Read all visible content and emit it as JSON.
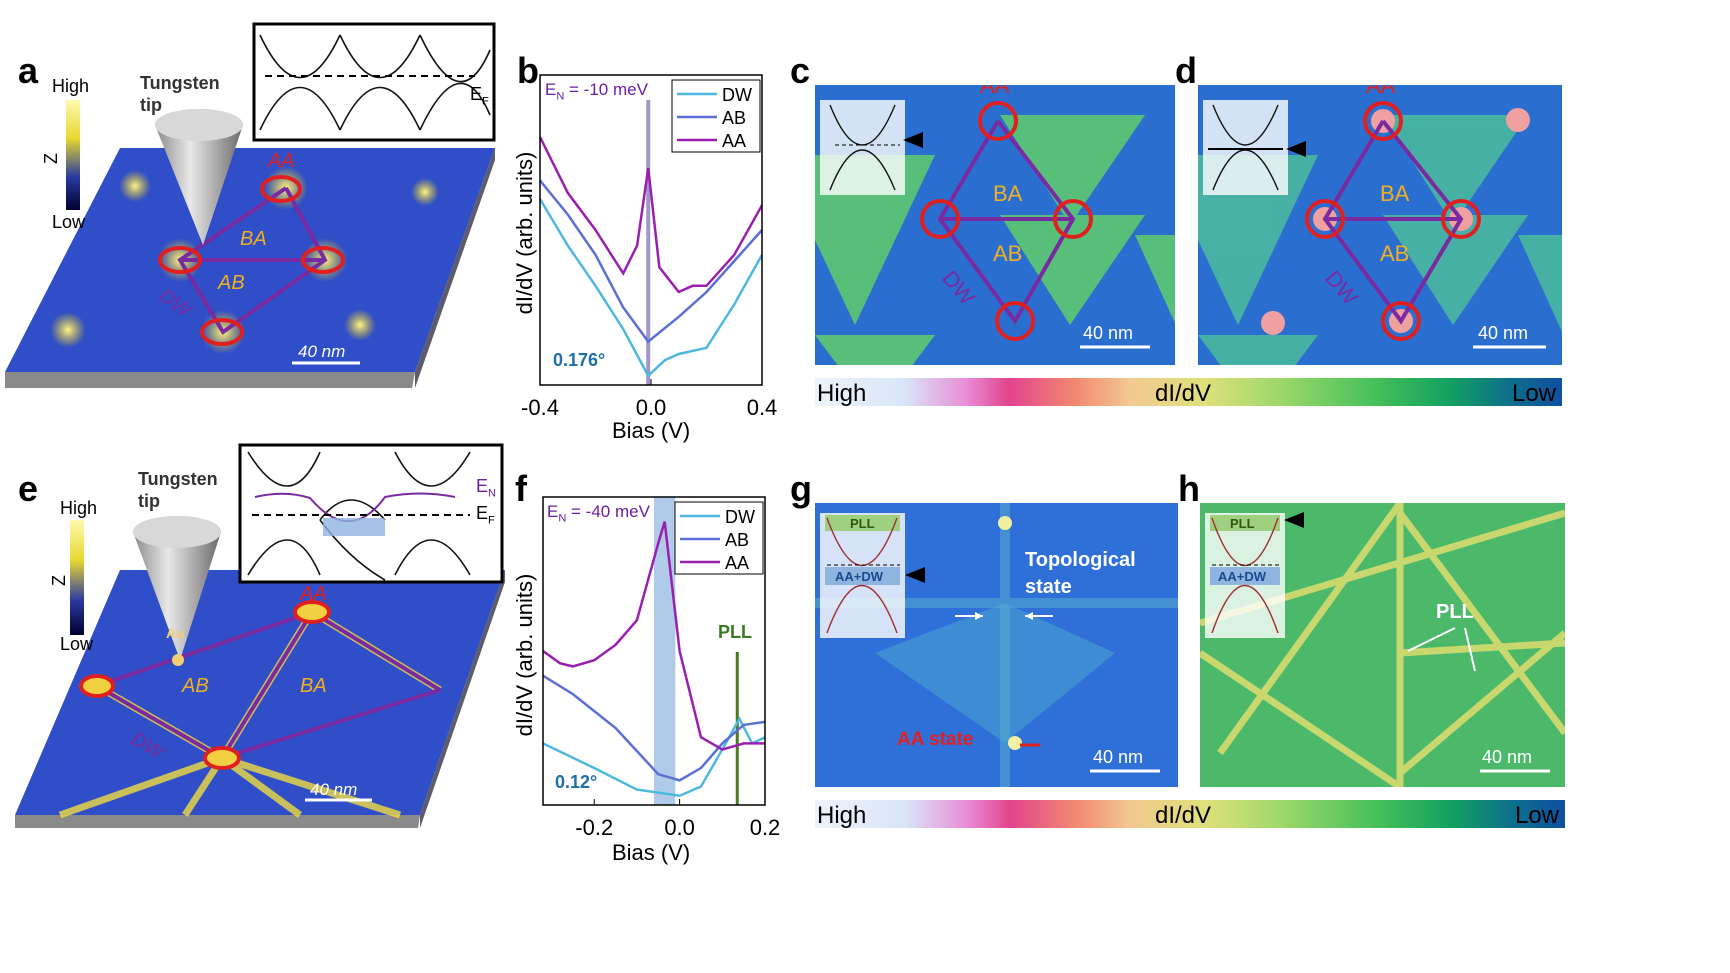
{
  "panels": {
    "a": "a",
    "b": "b",
    "c": "c",
    "d": "d",
    "e": "e",
    "f": "f",
    "g": "g",
    "h": "h"
  },
  "a": {
    "tip": "Tungsten\ntip",
    "z_high": "High",
    "z_low": "Low",
    "z_axis": "Z",
    "regions": [
      "AA",
      "BA",
      "AB",
      "DW"
    ],
    "scale": "40 nm",
    "inset_ef": "E",
    "inset_ef_sub": "F"
  },
  "e": {
    "tip": "Tungsten\ntip",
    "z_high": "High",
    "z_low": "Low",
    "z_axis": "Z",
    "au": "Au",
    "regions": [
      "AA",
      "AB",
      "BA",
      "DW"
    ],
    "scale": "40 nm",
    "inset_en": "E",
    "inset_en_sub": "N",
    "inset_ef": "E",
    "inset_ef_sub": "F"
  },
  "c": {
    "regions": [
      "AA",
      "BA",
      "AB",
      "DW"
    ],
    "scale": "40 nm"
  },
  "d": {
    "regions": [
      "AA",
      "BA",
      "AB",
      "DW"
    ],
    "scale": "40 nm"
  },
  "g": {
    "pll": "PLL",
    "aadw": "AA+DW",
    "topo": "Topological\nstate",
    "aa_state": "AA state",
    "scale": "40 nm"
  },
  "h": {
    "pll": "PLL",
    "aadw": "AA+DW",
    "pll_label": "PLL",
    "scale": "40 nm"
  },
  "colorbar": {
    "high": "High",
    "label": "dI/dV",
    "low": "Low"
  },
  "chart_data": [
    {
      "type": "line",
      "panel": "b",
      "xlabel": "Bias (V)",
      "ylabel": "dI/dV (arb. units)",
      "xlim": [
        -0.4,
        0.4
      ],
      "ylim": [
        0,
        1
      ],
      "xticks": [
        "-0.4",
        "0.0",
        "0.4"
      ],
      "annotation": "E_N = -10 meV",
      "annotation_main": "E",
      "annotation_sub": "N",
      "annotation_rest": " = -10 meV",
      "angle": "0.176°",
      "vline": -0.01,
      "legend": "top-right",
      "series": [
        {
          "name": "DW",
          "color": "#4fb8e0",
          "x": [
            -0.4,
            -0.3,
            -0.2,
            -0.1,
            -0.01,
            0.05,
            0.1,
            0.2,
            0.3,
            0.4
          ],
          "y": [
            0.6,
            0.45,
            0.32,
            0.18,
            0.03,
            0.08,
            0.1,
            0.12,
            0.26,
            0.42
          ]
        },
        {
          "name": "AB",
          "color": "#5b6fd6",
          "x": [
            -0.4,
            -0.3,
            -0.2,
            -0.1,
            -0.01,
            0.1,
            0.2,
            0.3,
            0.4
          ],
          "y": [
            0.66,
            0.55,
            0.42,
            0.25,
            0.14,
            0.22,
            0.3,
            0.4,
            0.5
          ]
        },
        {
          "name": "AA",
          "color": "#9a1fb0",
          "x": [
            -0.4,
            -0.3,
            -0.2,
            -0.1,
            -0.05,
            -0.01,
            0.03,
            0.1,
            0.15,
            0.2,
            0.3,
            0.4
          ],
          "y": [
            0.8,
            0.62,
            0.5,
            0.36,
            0.45,
            0.7,
            0.38,
            0.3,
            0.32,
            0.32,
            0.42,
            0.58
          ]
        }
      ]
    },
    {
      "type": "line",
      "panel": "f",
      "xlabel": "Bias (V)",
      "ylabel": "dI/dV (arb. units)",
      "xlim": [
        -0.32,
        0.2
      ],
      "ylim": [
        0,
        1
      ],
      "xticks": [
        "-0.2",
        "0.0",
        "0.2"
      ],
      "annotation": "E_N = -40 meV",
      "annotation_main": "E",
      "annotation_sub": "N",
      "annotation_rest": " = -40 meV",
      "angle": "0.12°",
      "band": [
        -0.06,
        -0.01
      ],
      "vline": 0.135,
      "vline_label": "PLL",
      "legend": "top-right",
      "series": [
        {
          "name": "DW",
          "color": "#4fb8e0",
          "x": [
            -0.32,
            -0.2,
            -0.1,
            0,
            0.05,
            0.1,
            0.14,
            0.17,
            0.2
          ],
          "y": [
            0.2,
            0.12,
            0.05,
            0.03,
            0.06,
            0.18,
            0.28,
            0.2,
            0.22
          ]
        },
        {
          "name": "AB",
          "color": "#5b6fd6",
          "x": [
            -0.32,
            -0.25,
            -0.15,
            -0.05,
            0,
            0.05,
            0.1,
            0.15,
            0.2
          ],
          "y": [
            0.42,
            0.36,
            0.25,
            0.1,
            0.08,
            0.12,
            0.2,
            0.26,
            0.27
          ]
        },
        {
          "name": "AA",
          "color": "#9a1fb0",
          "x": [
            -0.32,
            -0.28,
            -0.25,
            -0.2,
            -0.15,
            -0.1,
            -0.05,
            -0.035,
            0,
            0.05,
            0.1,
            0.15,
            0.2
          ],
          "y": [
            0.5,
            0.46,
            0.45,
            0.47,
            0.52,
            0.6,
            0.85,
            0.92,
            0.5,
            0.22,
            0.18,
            0.2,
            0.2
          ]
        }
      ]
    }
  ]
}
